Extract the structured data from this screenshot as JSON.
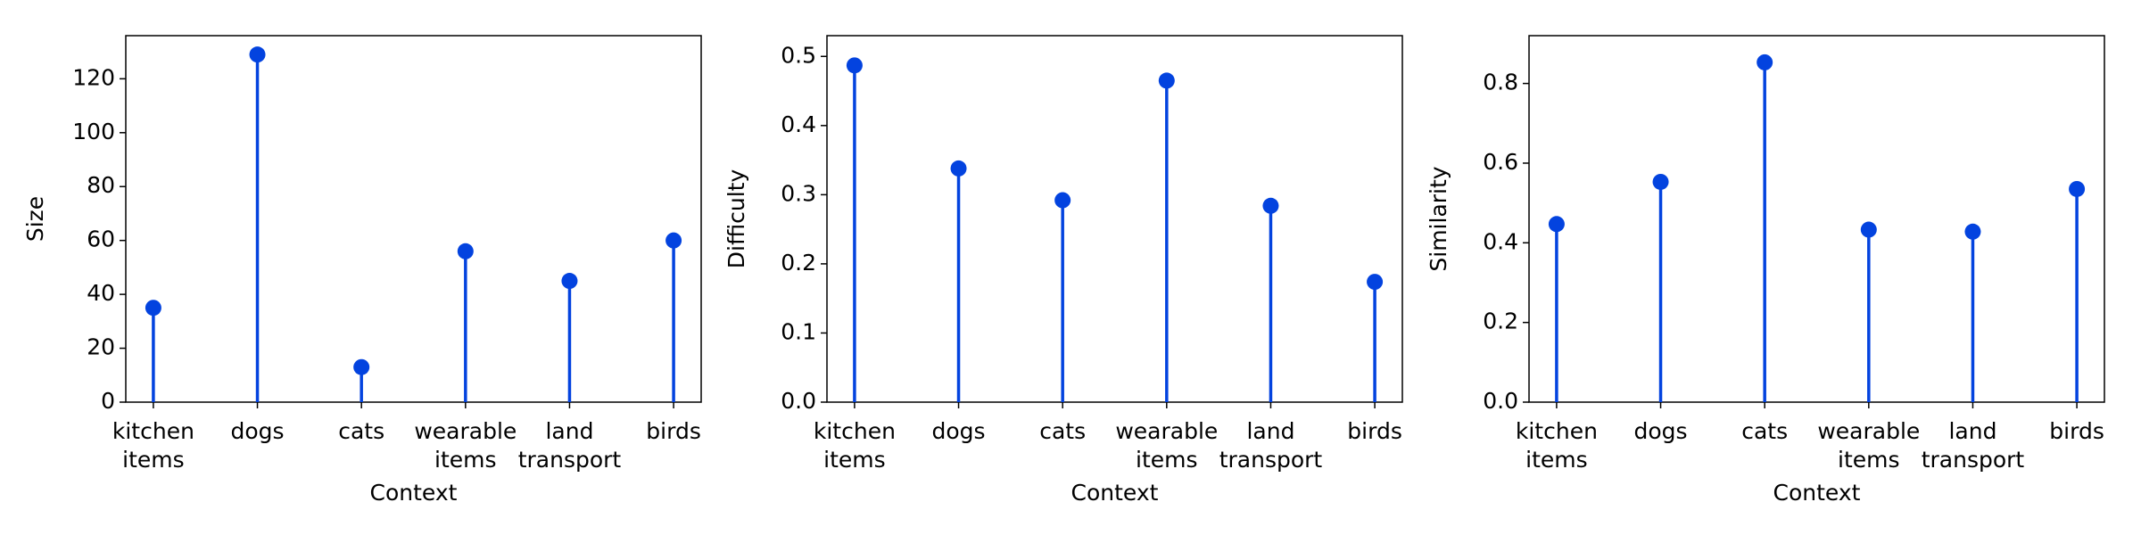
{
  "chart_data": [
    {
      "type": "stem",
      "xlabel": "Context",
      "ylabel": "Size",
      "categories": [
        "kitchen\nitems",
        "dogs",
        "cats",
        "wearable\nitems",
        "land\ntransport",
        "birds"
      ],
      "values": [
        35,
        129,
        13,
        56,
        45,
        60
      ],
      "color": "#0343df",
      "ylim": [
        0,
        136
      ],
      "yticks": [
        0,
        20,
        40,
        60,
        80,
        100,
        120
      ]
    },
    {
      "type": "stem",
      "xlabel": "Context",
      "ylabel": "Difficulty",
      "categories": [
        "kitchen\nitems",
        "dogs",
        "cats",
        "wearable\nitems",
        "land\ntransport",
        "birds"
      ],
      "values": [
        0.487,
        0.338,
        0.292,
        0.465,
        0.284,
        0.174
      ],
      "color": "#0343df",
      "ylim": [
        0,
        0.53
      ],
      "yticks": [
        {
          "value": 0,
          "label": "0.0"
        },
        0.1,
        0.2,
        0.3,
        0.4,
        0.5
      ]
    },
    {
      "type": "stem",
      "xlabel": "Context",
      "ylabel": "Similarity",
      "categories": [
        "kitchen\nitems",
        "dogs",
        "cats",
        "wearable\nitems",
        "land\ntransport",
        "birds"
      ],
      "values": [
        0.447,
        0.553,
        0.853,
        0.433,
        0.428,
        0.535
      ],
      "color": "#0343df",
      "ylim": [
        0,
        0.92
      ],
      "yticks": [
        {
          "value": 0,
          "label": "0.0"
        },
        0.2,
        0.4,
        0.6,
        0.8
      ]
    }
  ]
}
